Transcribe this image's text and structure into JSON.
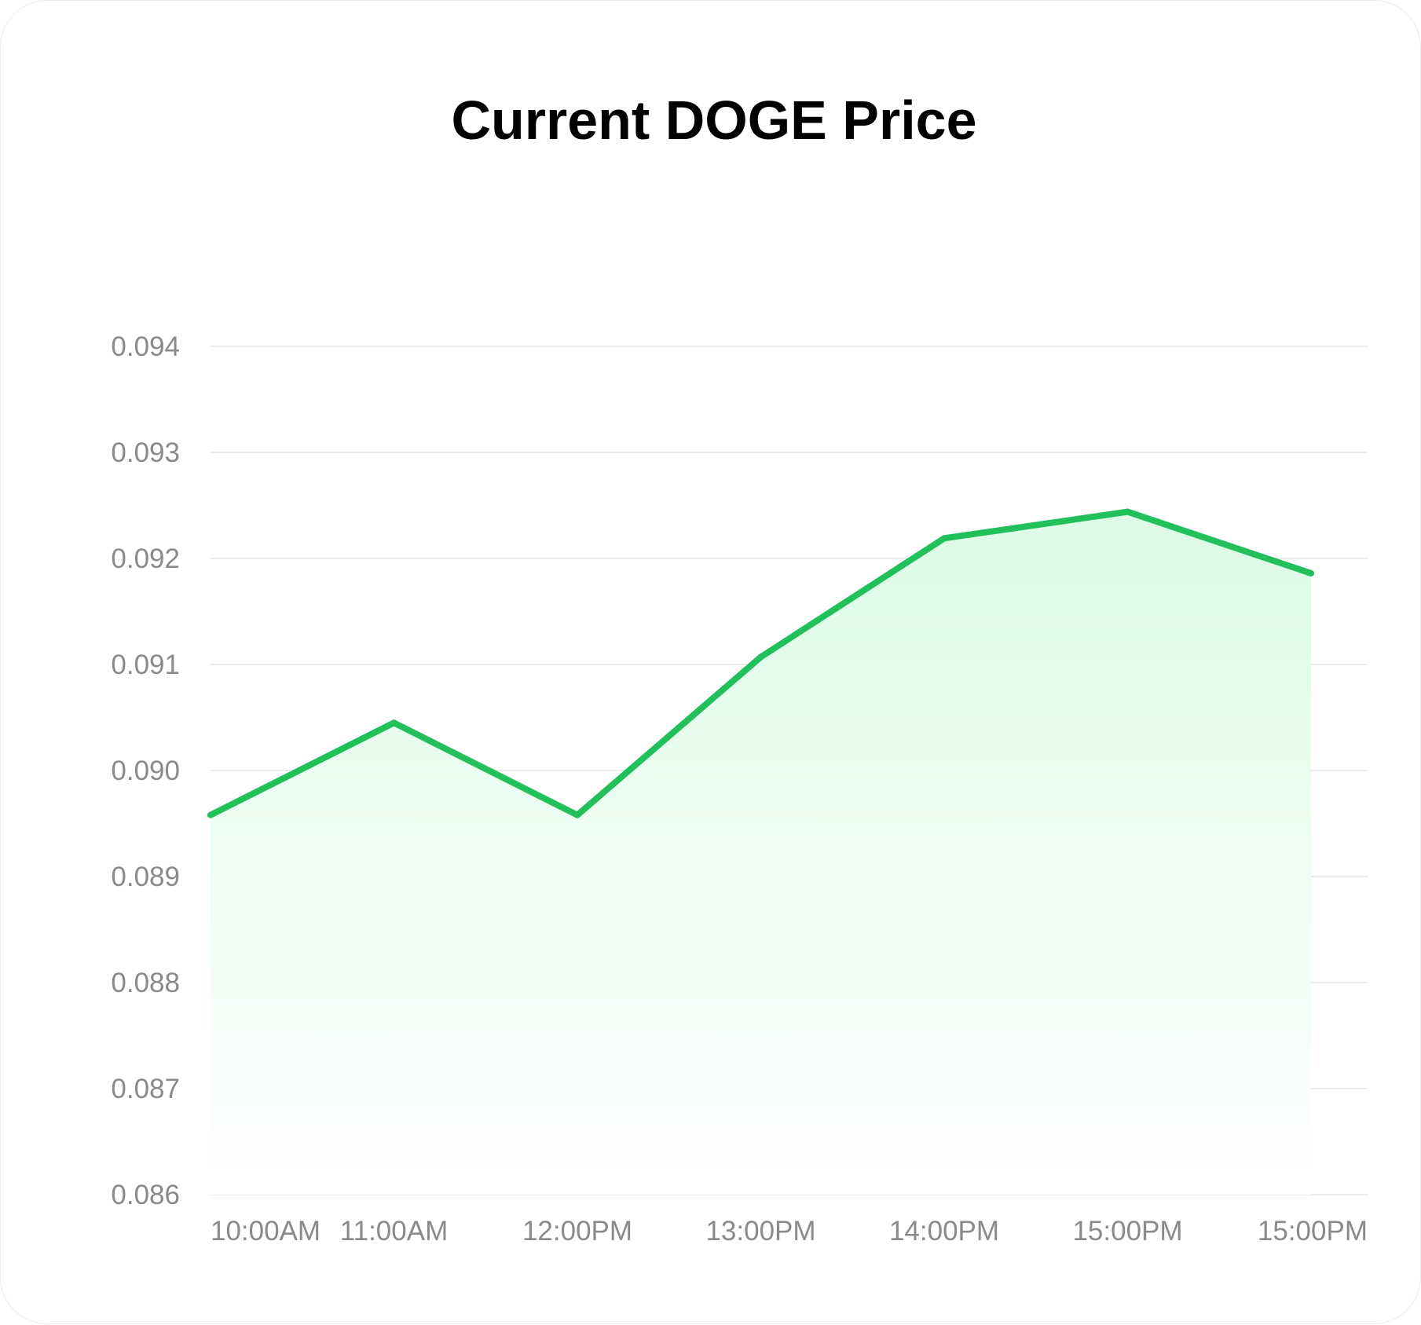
{
  "chart_data": {
    "type": "area",
    "title": "Current DOGE Price",
    "xlabel": "",
    "ylabel": "",
    "categories": [
      "10:00AM",
      "11:00AM",
      "12:00PM",
      "13:00PM",
      "14:00PM",
      "15:00PM",
      "15:00PM"
    ],
    "y_ticks": [
      "0.094",
      "0.093",
      "0.092",
      "0.091",
      "0.090",
      "0.089",
      "0.088",
      "0.087",
      "0.086"
    ],
    "ylim": [
      0.086,
      0.094
    ],
    "grid": true,
    "legend": "none",
    "series": [
      {
        "values": [
          0.08958,
          0.09045,
          0.08958,
          0.09107,
          0.09219,
          0.09244,
          0.09186
        ],
        "color": "#22c05a",
        "fill_color": "#dcfbe5"
      }
    ]
  }
}
